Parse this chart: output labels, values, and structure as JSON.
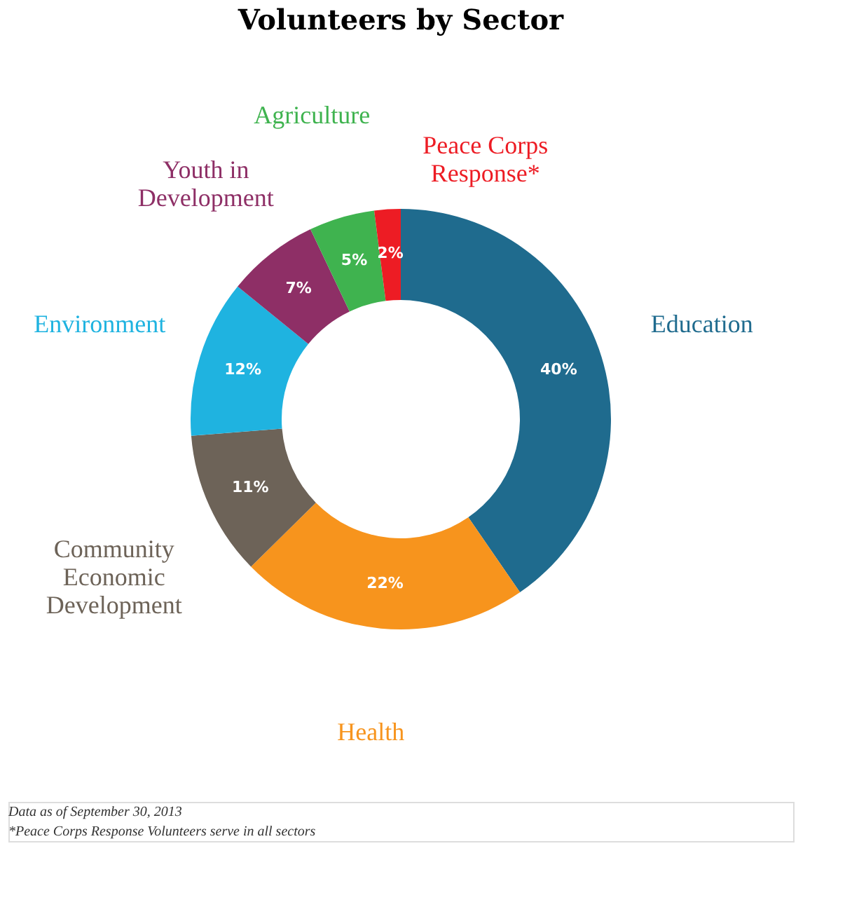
{
  "chart_data": {
    "type": "donut",
    "title": "Volunteers by Sector",
    "categories": [
      "Education",
      "Health",
      "Community Economic Development",
      "Environment",
      "Youth in Development",
      "Agriculture",
      "Peace Corps Response*"
    ],
    "values": [
      40,
      22,
      11,
      12,
      7,
      5,
      2
    ],
    "value_labels": [
      "40%",
      "22%",
      "11%",
      "12%",
      "7%",
      "5%",
      "2%"
    ],
    "colors": [
      "#1f6b8e",
      "#f7941d",
      "#6d6358",
      "#1fb3e0",
      "#8e2f66",
      "#3fb34f",
      "#ed1c24"
    ],
    "legend": false,
    "annotations": [
      "Data as of September 30, 2013",
      "*Peace Corps Response Volunteers serve in all sectors"
    ]
  }
}
